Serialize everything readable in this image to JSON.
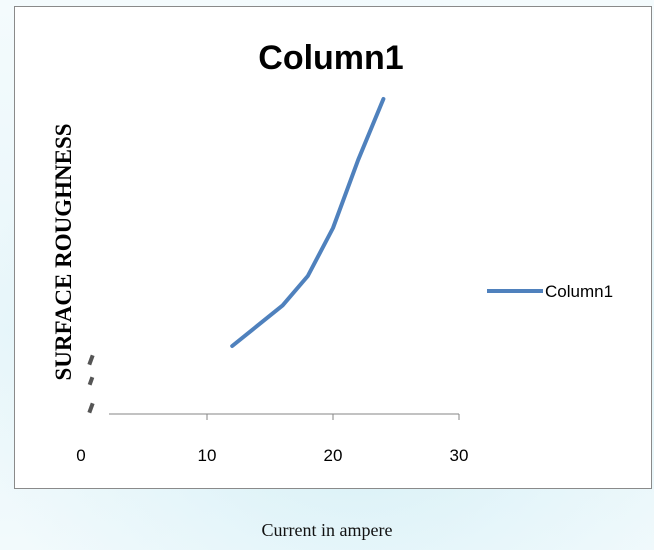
{
  "chart_data": {
    "type": "line",
    "title": "Column1",
    "xlabel": "Current in ampere",
    "ylabel": "SURFACE ROUGHNESS",
    "xlim": [
      0,
      30
    ],
    "xticks": [
      "0",
      "10",
      "20",
      "30"
    ],
    "series": [
      {
        "name": "Column1",
        "color": "#4f81bd",
        "x": [
          12,
          14,
          16,
          18,
          20,
          22,
          24
        ],
        "y": [
          0.5,
          1.05,
          1.6,
          2.4,
          3.7,
          5.55,
          7.2
        ]
      }
    ],
    "legend": "right",
    "grid": false
  }
}
